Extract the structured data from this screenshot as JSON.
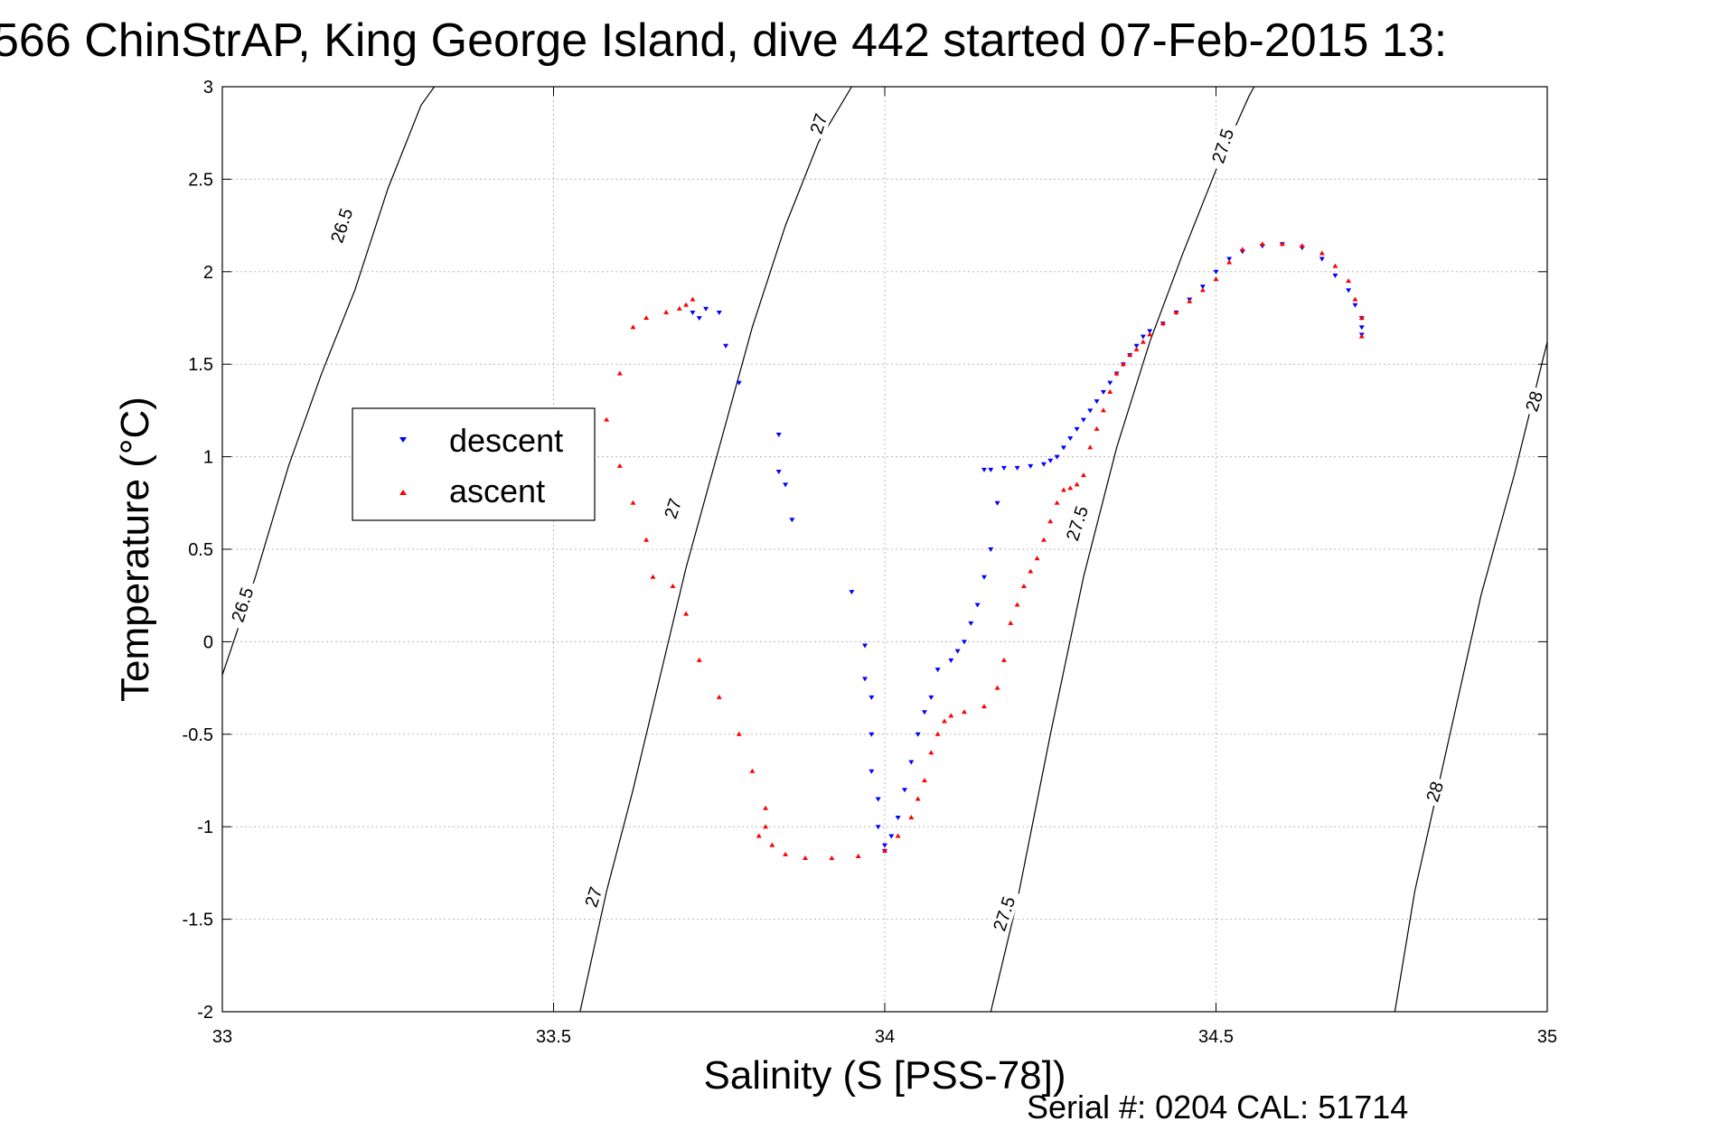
{
  "title": "566 ChinStrAP, King George Island, dive 442 started 07-Feb-2015 13:",
  "serial_text": "Serial #: 0204  CAL: 51714",
  "chart_data": {
    "type": "scatter",
    "title": "566 ChinStrAP, King George Island, dive 442 started 07-Feb-2015 13:",
    "xlabel": "Salinity (S [PSS-78])",
    "ylabel": "Temperature (°C)",
    "xlim": [
      33,
      35
    ],
    "ylim": [
      -2,
      3
    ],
    "grid": true,
    "legend_position": "left-middle",
    "x_ticks": [
      "33",
      "33.5",
      "34",
      "34.5",
      "35"
    ],
    "y_ticks": [
      "3",
      "2.5",
      "2",
      "1.5",
      "1",
      "0.5",
      "0",
      "-0.5",
      "-1",
      "-1.5",
      "-2"
    ],
    "isopycnals": [
      {
        "label": "26.5",
        "points": [
          [
            33.0,
            -0.18
          ],
          [
            33.05,
            0.35
          ],
          [
            33.1,
            0.95
          ],
          [
            33.15,
            1.45
          ],
          [
            33.2,
            1.9
          ],
          [
            33.25,
            2.45
          ],
          [
            33.3,
            2.9
          ],
          [
            33.32,
            3.0
          ]
        ]
      },
      {
        "label": "27",
        "points": [
          [
            33.54,
            -2.0
          ],
          [
            33.58,
            -1.35
          ],
          [
            33.62,
            -0.8
          ],
          [
            33.66,
            -0.2
          ],
          [
            33.7,
            0.4
          ],
          [
            33.75,
            1.05
          ],
          [
            33.8,
            1.7
          ],
          [
            33.85,
            2.25
          ],
          [
            33.9,
            2.7
          ],
          [
            33.95,
            3.0
          ]
        ]
      },
      {
        "label": "27.5",
        "points": [
          [
            34.16,
            -2.0
          ],
          [
            34.2,
            -1.4
          ],
          [
            34.25,
            -0.5
          ],
          [
            34.3,
            0.35
          ],
          [
            34.35,
            1.05
          ],
          [
            34.4,
            1.62
          ],
          [
            34.45,
            2.1
          ],
          [
            34.5,
            2.55
          ],
          [
            34.55,
            2.95
          ],
          [
            34.57,
            3.08
          ]
        ]
      },
      {
        "label": "28",
        "points": [
          [
            34.77,
            -2.0
          ],
          [
            34.8,
            -1.35
          ],
          [
            34.85,
            -0.55
          ],
          [
            34.9,
            0.25
          ],
          [
            34.95,
            0.9
          ],
          [
            35.0,
            1.62
          ]
        ]
      }
    ],
    "isopycnal_labels": [
      {
        "text": "26.5",
        "x": 33.18,
        "y": 2.25
      },
      {
        "text": "26.5",
        "x": 33.03,
        "y": 0.2
      },
      {
        "text": "27",
        "x": 33.9,
        "y": 2.8
      },
      {
        "text": "27",
        "x": 33.68,
        "y": 0.72
      },
      {
        "text": "27",
        "x": 33.56,
        "y": -1.38
      },
      {
        "text": "27.5",
        "x": 34.51,
        "y": 2.68
      },
      {
        "text": "27.5",
        "x": 34.29,
        "y": 0.64
      },
      {
        "text": "27.5",
        "x": 34.18,
        "y": -1.47
      },
      {
        "text": "28",
        "x": 34.98,
        "y": 1.3
      },
      {
        "text": "28",
        "x": 34.83,
        "y": -0.81
      }
    ],
    "series": [
      {
        "name": "descent",
        "color": "#0000ff",
        "marker": "triangle-down",
        "x": [
          33.71,
          33.72,
          33.73,
          33.75,
          33.76,
          33.78,
          33.84,
          33.84,
          33.85,
          33.86,
          33.95,
          33.97,
          33.97,
          33.98,
          33.98,
          33.98,
          33.99,
          33.99,
          34.0,
          34.0,
          34.01,
          34.02,
          34.03,
          34.04,
          34.05,
          34.06,
          34.07,
          34.08,
          34.1,
          34.11,
          34.12,
          34.13,
          34.14,
          34.15,
          34.16,
          34.17,
          34.15,
          34.16,
          34.18,
          34.2,
          34.22,
          34.24,
          34.25,
          34.26,
          34.27,
          34.28,
          34.29,
          34.3,
          34.31,
          34.32,
          34.33,
          34.34,
          34.35,
          34.36,
          34.37,
          34.38,
          34.39,
          34.4,
          34.42,
          34.44,
          34.46,
          34.48,
          34.5,
          34.52,
          34.54,
          34.57,
          34.6,
          34.63,
          34.66,
          34.68,
          34.7,
          34.71,
          34.72,
          34.72,
          34.72
        ],
        "y": [
          1.78,
          1.75,
          1.8,
          1.78,
          1.6,
          1.4,
          1.12,
          0.92,
          0.85,
          0.66,
          0.27,
          -0.02,
          -0.2,
          -0.3,
          -0.5,
          -0.7,
          -0.85,
          -1.0,
          -1.1,
          -1.13,
          -1.05,
          -0.95,
          -0.8,
          -0.65,
          -0.5,
          -0.38,
          -0.3,
          -0.15,
          -0.1,
          -0.05,
          0.0,
          0.1,
          0.2,
          0.35,
          0.5,
          0.75,
          0.93,
          0.93,
          0.94,
          0.94,
          0.95,
          0.96,
          0.98,
          1.0,
          1.05,
          1.1,
          1.15,
          1.2,
          1.25,
          1.3,
          1.35,
          1.4,
          1.45,
          1.5,
          1.55,
          1.6,
          1.65,
          1.68,
          1.72,
          1.78,
          1.85,
          1.92,
          2.0,
          2.07,
          2.11,
          2.14,
          2.15,
          2.13,
          2.07,
          1.98,
          1.9,
          1.82,
          1.75,
          1.7,
          1.66
        ]
      },
      {
        "name": "ascent",
        "color": "#ff0000",
        "marker": "triangle-up",
        "x": [
          33.71,
          33.7,
          33.69,
          33.67,
          33.64,
          33.62,
          33.6,
          33.58,
          33.6,
          33.62,
          33.64,
          33.65,
          33.68,
          33.7,
          33.72,
          33.75,
          33.78,
          33.8,
          33.82,
          33.82,
          33.81,
          33.83,
          33.85,
          33.88,
          33.92,
          33.96,
          34.0,
          34.02,
          34.04,
          34.05,
          34.06,
          34.07,
          34.08,
          34.09,
          34.1,
          34.12,
          34.15,
          34.17,
          34.18,
          34.19,
          34.2,
          34.21,
          34.22,
          34.23,
          34.24,
          34.25,
          34.26,
          34.27,
          34.28,
          34.29,
          34.3,
          34.31,
          34.32,
          34.33,
          34.34,
          34.35,
          34.36,
          34.37,
          34.38,
          34.39,
          34.4,
          34.42,
          34.44,
          34.46,
          34.48,
          34.5,
          34.52,
          34.54,
          34.57,
          34.6,
          34.63,
          34.66,
          34.68,
          34.7,
          34.71,
          34.72,
          34.72
        ],
        "y": [
          1.85,
          1.82,
          1.8,
          1.78,
          1.75,
          1.7,
          1.45,
          1.2,
          0.95,
          0.75,
          0.55,
          0.35,
          0.3,
          0.15,
          -0.1,
          -0.3,
          -0.5,
          -0.7,
          -0.9,
          -1.0,
          -1.05,
          -1.1,
          -1.15,
          -1.17,
          -1.17,
          -1.16,
          -1.13,
          -1.05,
          -0.95,
          -0.85,
          -0.75,
          -0.6,
          -0.5,
          -0.43,
          -0.4,
          -0.38,
          -0.35,
          -0.25,
          -0.1,
          0.1,
          0.2,
          0.3,
          0.38,
          0.45,
          0.55,
          0.65,
          0.75,
          0.82,
          0.83,
          0.85,
          0.9,
          1.05,
          1.15,
          1.25,
          1.35,
          1.45,
          1.5,
          1.55,
          1.58,
          1.62,
          1.66,
          1.72,
          1.78,
          1.84,
          1.9,
          1.96,
          2.05,
          2.12,
          2.15,
          2.15,
          2.14,
          2.1,
          2.03,
          1.95,
          1.85,
          1.75,
          1.65
        ]
      }
    ]
  }
}
